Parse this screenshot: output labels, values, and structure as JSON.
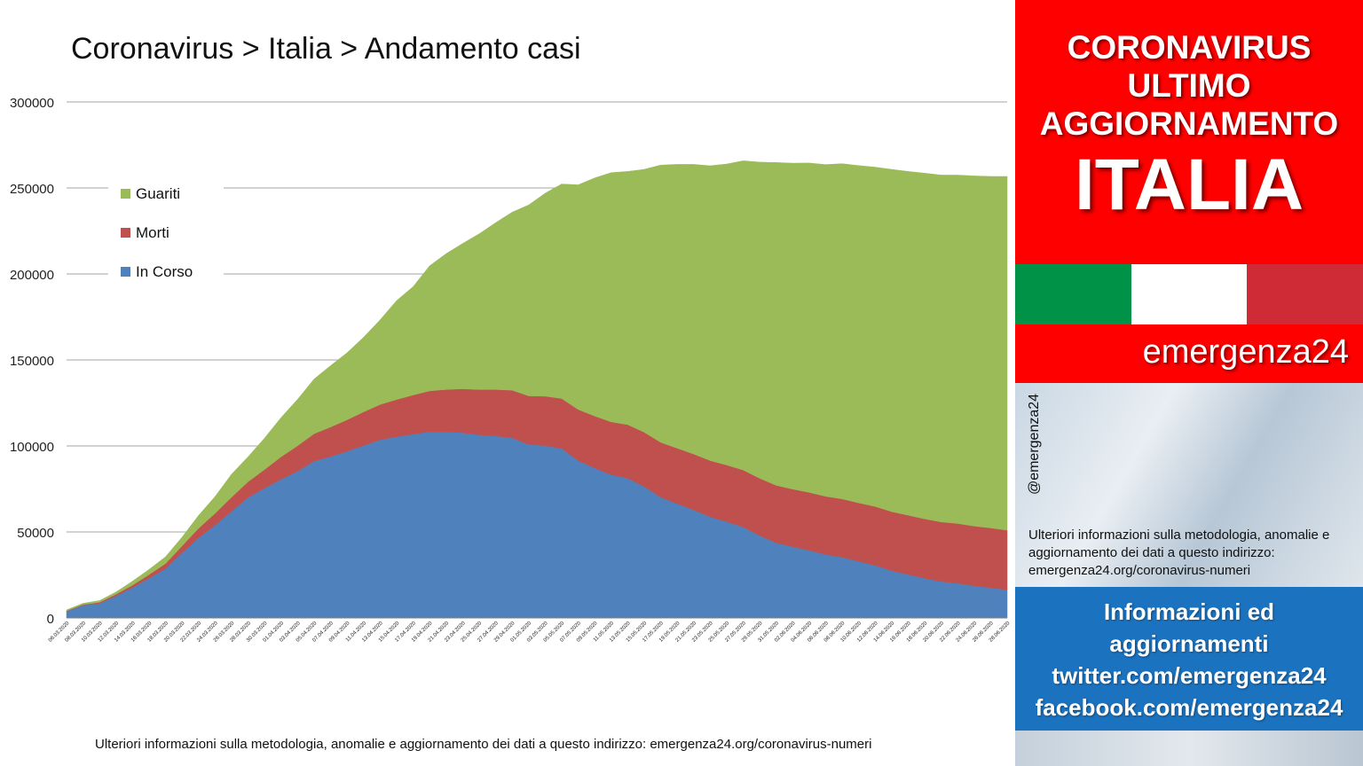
{
  "chart_data": {
    "type": "area",
    "stacked": true,
    "title": "Coronavirus > Italia > Andamento casi",
    "ylim": [
      0,
      300000
    ],
    "yticks": [
      0,
      50000,
      100000,
      150000,
      200000,
      250000,
      300000
    ],
    "x_start": "06.03.2020",
    "x_end": "28.06.2020",
    "x_tick_labels": [
      "06.03.2020",
      "08.03.2020",
      "10.03.2020",
      "12.03.2020",
      "14.03.2020",
      "16.03.2020",
      "18.03.2020",
      "20.03.2020",
      "22.03.2020",
      "24.03.2020",
      "26.03.2020",
      "28.03.2020",
      "30.03.2020",
      "01.04.2020",
      "03.04.2020",
      "05.04.2020",
      "07.04.2020",
      "09.04.2020",
      "11.04.2020",
      "13.04.2020",
      "15.04.2020",
      "17.04.2020",
      "19.04.2020",
      "21.04.2020",
      "23.04.2020",
      "25.04.2020",
      "27.04.2020",
      "29.04.2020",
      "01.05.2020",
      "03.05.2020",
      "05.05.2020",
      "07.05.2020",
      "09.05.2020",
      "11.05.2020",
      "13.05.2020",
      "15.05.2020",
      "17.05.2020",
      "19.05.2020",
      "21.05.2020",
      "23.05.2020",
      "25.05.2020",
      "27.05.2020",
      "29.05.2020",
      "31.05.2020",
      "02.06.2020",
      "04.06.2020",
      "06.06.2020",
      "08.06.2020",
      "10.06.2020",
      "12.06.2020",
      "14.06.2020",
      "16.06.2020",
      "18.06.2020",
      "20.06.2020",
      "22.06.2020",
      "24.06.2020",
      "26.06.2020",
      "28.06.2020"
    ],
    "legend_position": "top-left",
    "grid": true,
    "series": [
      {
        "name": "In Corso",
        "color": "#4f81bd",
        "values": [
          3900,
          7400,
          8500,
          12800,
          17700,
          23100,
          28700,
          37900,
          46600,
          54000,
          62000,
          70100,
          75500,
          80600,
          85400,
          91200,
          93900,
          96900,
          100300,
          103600,
          105400,
          106900,
          108300,
          108200,
          107700,
          106500,
          105800,
          104700,
          100900,
          100200,
          98500,
          91500,
          87200,
          83300,
          81300,
          76400,
          70200,
          66500,
          62800,
          58800,
          56000,
          52900,
          47900,
          43700,
          41400,
          39300,
          36900,
          35300,
          32900,
          30600,
          27500,
          25300,
          23100,
          21200,
          20200,
          18700,
          17600,
          16300
        ]
      },
      {
        "name": "Morti",
        "color": "#c0504d",
        "values": [
          200,
          400,
          600,
          1000,
          1400,
          2100,
          2900,
          4000,
          5500,
          6800,
          8200,
          9100,
          10800,
          13100,
          14700,
          15900,
          17100,
          18300,
          19500,
          20500,
          21600,
          22700,
          23700,
          24600,
          25500,
          26300,
          27000,
          27700,
          28200,
          28700,
          29100,
          29700,
          30200,
          30700,
          31100,
          31600,
          31900,
          32200,
          32500,
          32700,
          32900,
          33100,
          33300,
          33400,
          33500,
          33700,
          33800,
          33900,
          34000,
          34200,
          34300,
          34400,
          34500,
          34600,
          34700,
          34700,
          34700,
          34700
        ]
      },
      {
        "name": "Guariti",
        "color": "#9bbb59",
        "values": [
          600,
          700,
          1000,
          1300,
          2300,
          3000,
          4000,
          5100,
          7500,
          9800,
          13400,
          14500,
          18300,
          22800,
          27000,
          31800,
          35700,
          39000,
          43400,
          49200,
          57500,
          63000,
          72700,
          79000,
          84500,
          90500,
          97000,
          103500,
          111000,
          118000,
          124700,
          130600,
          138400,
          144900,
          147200,
          152800,
          161200,
          165000,
          168400,
          171400,
          175000,
          179800,
          183800,
          187700,
          189500,
          191500,
          192900,
          194900,
          196100,
          197300,
          199000,
          199900,
          201000,
          201700,
          202600,
          203600,
          204400,
          205700
        ]
      }
    ]
  },
  "footnote": "Ulteriori informazioni sulla metodologia, anomalie e aggiornamento dei dati a questo indirizzo: emergenza24.org/coronavirus-numeri",
  "sidebar": {
    "banner_lines": [
      "CORONAVIRUS",
      "ULTIMO",
      "AGGIORNAMENTO"
    ],
    "country": "ITALIA",
    "flag_colors": [
      "#009246",
      "#ffffff",
      "#ce2b37"
    ],
    "brand": "emergenza24",
    "handle": "@emergenza24",
    "info_text": "Ulteriori informazioni sulla metodologia, anomalie e aggiornamento dei dati a questo indirizzo: emergenza24.org/coronavirus-numeri",
    "social_lines": [
      "Informazioni ed",
      "aggiornamenti",
      "twitter.com/emergenza24",
      "facebook.com/emergenza24"
    ]
  }
}
